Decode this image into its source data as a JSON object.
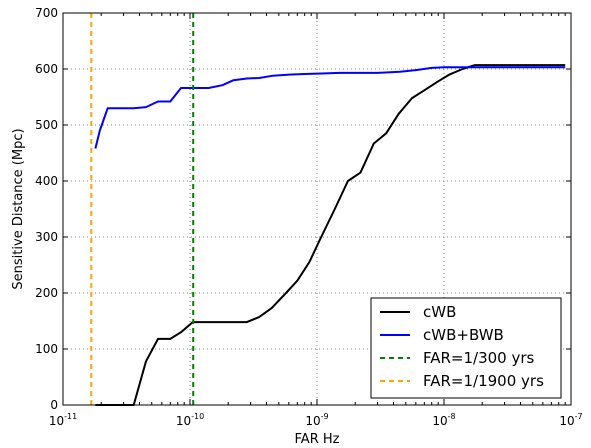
{
  "chart_data": {
    "type": "line",
    "title": "",
    "xlabel": "FAR Hz",
    "ylabel": "Sensitive Distance (Mpc)",
    "xscale": "log",
    "xlim": [
      1e-11,
      1e-07
    ],
    "ylim": [
      0,
      700
    ],
    "x_ticks": [
      {
        "base": "10",
        "exp": "-11",
        "value": 1e-11
      },
      {
        "base": "10",
        "exp": "-10",
        "value": 1e-10
      },
      {
        "base": "10",
        "exp": "-9",
        "value": 1e-09
      },
      {
        "base": "10",
        "exp": "-8",
        "value": 1e-08
      },
      {
        "base": "10",
        "exp": "-7",
        "value": 1e-07
      }
    ],
    "y_ticks": [
      "0",
      "100",
      "200",
      "300",
      "400",
      "500",
      "600",
      "700"
    ],
    "grid": true,
    "legend_position": "bottom-right",
    "series": [
      {
        "name": "cWB",
        "color": "#000000",
        "style": "solid",
        "x": [
          1.8e-11,
          2.3e-11,
          2.8e-11,
          3.6e-11,
          4.5e-11,
          5.6e-11,
          7e-11,
          8.5e-11,
          1.05e-10,
          1.3e-10,
          1.7e-10,
          2.2e-10,
          2.8e-10,
          3.5e-10,
          4.4e-10,
          5.6e-10,
          7e-10,
          8.7e-10,
          1.08e-09,
          1.38e-09,
          1.75e-09,
          2.2e-09,
          2.8e-09,
          3.5e-09,
          4.4e-09,
          5.6e-09,
          7e-09,
          9e-09,
          1.1e-08,
          1.4e-08,
          1.75e-08,
          2.5e-08,
          4e-08,
          6e-08,
          9e-08
        ],
        "values": [
          0,
          0,
          0,
          0,
          78,
          118,
          118,
          130,
          148,
          148,
          148,
          148,
          148,
          157,
          173,
          198,
          222,
          255,
          300,
          350,
          400,
          415,
          467,
          485,
          520,
          548,
          562,
          578,
          590,
          600,
          607,
          607,
          607,
          607,
          607
        ]
      },
      {
        "name": "cWB+BWB",
        "color": "#0000ff",
        "style": "solid",
        "x": [
          1.8e-11,
          1.95e-11,
          2.25e-11,
          2.8e-11,
          3.6e-11,
          4.5e-11,
          5.6e-11,
          7e-11,
          8.5e-11,
          1.05e-10,
          1.4e-10,
          1.8e-10,
          2.2e-10,
          2.8e-10,
          3.5e-10,
          4.5e-10,
          6e-10,
          8e-10,
          1.08e-09,
          1.5e-09,
          2e-09,
          3e-09,
          4.5e-09,
          6e-09,
          8e-09,
          1e-08,
          1.5e-08,
          2.5e-08,
          5e-08,
          9e-08
        ],
        "values": [
          458,
          490,
          530,
          530,
          530,
          532,
          542,
          542,
          566,
          566,
          566,
          571,
          580,
          583,
          584,
          588,
          590,
          591,
          592,
          593,
          593,
          593,
          595,
          598,
          602,
          603,
          603,
          603,
          603,
          603
        ]
      },
      {
        "name": "FAR=1/300 yrs",
        "color": "#008000",
        "style": "dashed",
        "vline_x": 1.06e-10
      },
      {
        "name": "FAR=1/1900 yrs",
        "color": "#ffa500",
        "style": "dashed",
        "vline_x": 1.67e-11
      }
    ]
  }
}
